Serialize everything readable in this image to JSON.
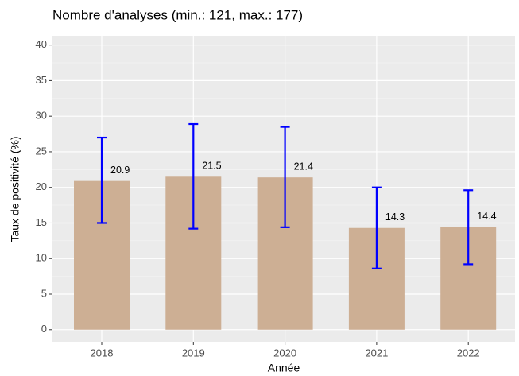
{
  "chart_data": {
    "type": "bar",
    "title": "Nombre d'analyses (min.: 121, max.: 177)",
    "x_label": "Année",
    "y_label": "Taux de positivité (%)",
    "categories": [
      "2018",
      "2019",
      "2020",
      "2021",
      "2022"
    ],
    "values": [
      20.9,
      21.5,
      21.4,
      14.3,
      14.4
    ],
    "lower": [
      15.0,
      14.2,
      14.4,
      8.6,
      9.2
    ],
    "upper": [
      27.0,
      28.9,
      28.5,
      20.0,
      19.6
    ],
    "color": "#cdaf94",
    "error_color": "#0000ff",
    "ylim": [
      -1.7,
      41.3
    ],
    "yticks": [
      0,
      5,
      10,
      15,
      20,
      25,
      30,
      35,
      40
    ],
    "grid": true
  }
}
